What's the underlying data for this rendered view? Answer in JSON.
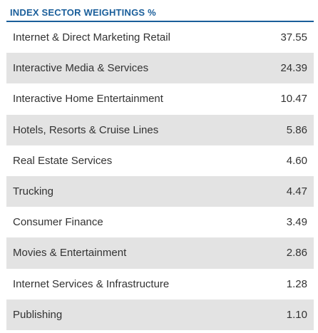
{
  "header": {
    "title": "INDEX SECTOR WEIGHTINGS %"
  },
  "colors": {
    "accent": "#1a5e9a",
    "stripe": "#e3e3e3",
    "text": "#333333"
  },
  "rows": [
    {
      "sector": "Internet & Direct Marketing Retail",
      "weight": "37.55"
    },
    {
      "sector": "Interactive Media & Services",
      "weight": "24.39"
    },
    {
      "sector": "Interactive Home Entertainment",
      "weight": "10.47"
    },
    {
      "sector": "Hotels, Resorts & Cruise Lines",
      "weight": "5.86"
    },
    {
      "sector": "Real Estate Services",
      "weight": "4.60"
    },
    {
      "sector": "Trucking",
      "weight": "4.47"
    },
    {
      "sector": "Consumer Finance",
      "weight": "3.49"
    },
    {
      "sector": "Movies & Entertainment",
      "weight": "2.86"
    },
    {
      "sector": "Internet Services & Infrastructure",
      "weight": "1.28"
    },
    {
      "sector": "Publishing",
      "weight": "1.10"
    }
  ]
}
